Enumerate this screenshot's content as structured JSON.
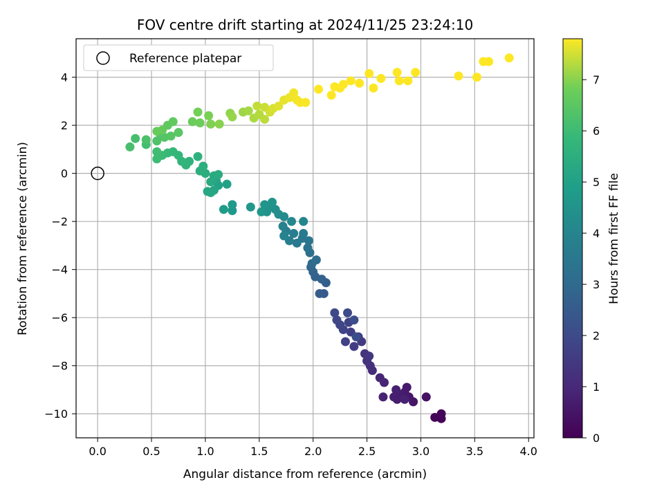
{
  "chart_data": {
    "type": "scatter",
    "title": "FOV centre drift starting at 2024/11/25 23:24:10",
    "xlabel": "Angular distance from reference (arcmin)",
    "ylabel": "Rotation from reference (arcmin)",
    "xlim": [
      -0.2,
      4.05
    ],
    "ylim": [
      -11.0,
      5.6
    ],
    "xticks": [
      "0.0",
      "0.5",
      "1.0",
      "1.5",
      "2.0",
      "2.5",
      "3.0",
      "3.5",
      "4.0"
    ],
    "xtick_values": [
      0,
      0.5,
      1,
      1.5,
      2,
      2.5,
      3,
      3.5,
      4
    ],
    "yticks": [
      "−10",
      "−8",
      "−6",
      "−4",
      "−2",
      "0",
      "2",
      "4"
    ],
    "ytick_values": [
      -10,
      -8,
      -6,
      -4,
      -2,
      0,
      2,
      4
    ],
    "grid": true,
    "legend": {
      "placement": "top-left",
      "entries": [
        "Reference platepar"
      ]
    },
    "reference_point": {
      "x": 0,
      "y": 0
    },
    "colorbar": {
      "label": "Hours from first FF file",
      "range": [
        0,
        7.8
      ],
      "ticks": [
        "0",
        "1",
        "2",
        "3",
        "4",
        "5",
        "6",
        "7"
      ],
      "tick_values": [
        0,
        1,
        2,
        3,
        4,
        5,
        6,
        7
      ],
      "colormap": "viridis"
    },
    "points": [
      [
        3.19,
        -10.2,
        0.05
      ],
      [
        3.13,
        -10.15,
        0.1
      ],
      [
        3.19,
        -10.0,
        0.15
      ],
      [
        3.05,
        -9.3,
        0.4
      ],
      [
        2.93,
        -9.5,
        0.5
      ],
      [
        2.89,
        -9.3,
        0.55
      ],
      [
        2.87,
        -8.9,
        0.6
      ],
      [
        2.85,
        -9.1,
        0.62
      ],
      [
        2.78,
        -9.4,
        0.7
      ],
      [
        2.8,
        -9.2,
        0.72
      ],
      [
        2.75,
        -9.3,
        0.75
      ],
      [
        2.77,
        -9.0,
        0.78
      ],
      [
        2.85,
        -9.4,
        0.8
      ],
      [
        2.65,
        -9.3,
        0.85
      ],
      [
        2.66,
        -8.7,
        0.9
      ],
      [
        2.62,
        -8.5,
        0.95
      ],
      [
        2.55,
        -8.2,
        1.1
      ],
      [
        2.53,
        -8.0,
        1.2
      ],
      [
        2.5,
        -7.8,
        1.3
      ],
      [
        2.48,
        -7.5,
        1.35
      ],
      [
        2.52,
        -7.6,
        1.4
      ],
      [
        2.45,
        -7.0,
        1.5
      ],
      [
        2.42,
        -6.8,
        1.55
      ],
      [
        2.38,
        -7.2,
        1.6
      ],
      [
        2.35,
        -6.6,
        1.65
      ],
      [
        2.3,
        -7.0,
        1.7
      ],
      [
        2.33,
        -6.2,
        1.75
      ],
      [
        2.28,
        -6.5,
        1.8
      ],
      [
        2.25,
        -6.3,
        1.85
      ],
      [
        2.22,
        -6.1,
        1.9
      ],
      [
        2.2,
        -5.8,
        1.95
      ],
      [
        2.32,
        -5.8,
        2.0
      ],
      [
        2.38,
        -6.1,
        2.05
      ],
      [
        2.4,
        -6.8,
        2.1
      ],
      [
        2.1,
        -5.0,
        2.5
      ],
      [
        2.06,
        -5.0,
        2.55
      ],
      [
        2.12,
        -4.55,
        2.6
      ],
      [
        2.08,
        -4.4,
        2.7
      ],
      [
        2.02,
        -4.3,
        2.75
      ],
      [
        2.0,
        -4.1,
        2.8
      ],
      [
        1.98,
        -3.9,
        2.9
      ],
      [
        1.99,
        -3.75,
        3.0
      ],
      [
        2.03,
        -3.6,
        3.1
      ],
      [
        1.97,
        -3.3,
        3.2
      ],
      [
        1.95,
        -3.1,
        3.3
      ],
      [
        1.96,
        -2.8,
        3.4
      ],
      [
        1.9,
        -2.7,
        3.5
      ],
      [
        1.85,
        -2.9,
        3.55
      ],
      [
        1.91,
        -2.5,
        3.6
      ],
      [
        1.82,
        -2.5,
        3.7
      ],
      [
        1.78,
        -2.8,
        3.75
      ],
      [
        1.75,
        -2.4,
        3.8
      ],
      [
        1.72,
        -2.2,
        3.85
      ],
      [
        1.73,
        -2.6,
        3.9
      ],
      [
        1.91,
        -2.0,
        4.0
      ],
      [
        1.8,
        -2.0,
        4.1
      ],
      [
        1.73,
        -1.8,
        4.2
      ],
      [
        1.68,
        -1.7,
        4.3
      ],
      [
        1.65,
        -1.5,
        4.35
      ],
      [
        1.6,
        -1.4,
        4.4
      ],
      [
        1.57,
        -1.6,
        4.45
      ],
      [
        1.62,
        -1.2,
        4.5
      ],
      [
        1.55,
        -1.3,
        4.55
      ],
      [
        1.52,
        -1.6,
        4.6
      ],
      [
        1.42,
        -1.4,
        4.65
      ],
      [
        1.25,
        -1.55,
        4.7
      ],
      [
        1.25,
        -1.3,
        4.75
      ],
      [
        1.17,
        -1.5,
        4.8
      ],
      [
        1.2,
        -0.45,
        5.0
      ],
      [
        1.12,
        -0.5,
        5.05
      ],
      [
        1.1,
        -0.3,
        5.1
      ],
      [
        1.08,
        -0.7,
        5.15
      ],
      [
        1.05,
        -0.8,
        5.2
      ],
      [
        1.02,
        -0.75,
        5.25
      ],
      [
        1.05,
        -0.35,
        5.3
      ],
      [
        1.08,
        -0.1,
        5.35
      ],
      [
        1.12,
        -0.05,
        5.4
      ],
      [
        1.0,
        0.0,
        5.45
      ],
      [
        0.95,
        0.1,
        5.5
      ],
      [
        0.98,
        0.3,
        5.55
      ],
      [
        0.93,
        0.7,
        5.6
      ],
      [
        0.85,
        0.5,
        5.65
      ],
      [
        0.82,
        0.35,
        5.7
      ],
      [
        0.78,
        0.5,
        5.75
      ],
      [
        0.75,
        0.75,
        5.8
      ],
      [
        0.7,
        0.9,
        5.85
      ],
      [
        0.65,
        0.85,
        5.9
      ],
      [
        0.6,
        0.75,
        5.95
      ],
      [
        0.55,
        0.6,
        6.0
      ],
      [
        0.55,
        0.9,
        6.05
      ],
      [
        0.45,
        1.2,
        6.1
      ],
      [
        0.35,
        1.45,
        6.15
      ],
      [
        0.3,
        1.1,
        6.2
      ],
      [
        0.45,
        1.4,
        6.25
      ],
      [
        0.55,
        1.35,
        6.3
      ],
      [
        0.58,
        1.65,
        6.35
      ],
      [
        0.62,
        1.5,
        6.4
      ],
      [
        0.68,
        1.55,
        6.45
      ],
      [
        0.75,
        1.7,
        6.5
      ],
      [
        0.65,
        2.0,
        6.55
      ],
      [
        0.7,
        2.15,
        6.6
      ],
      [
        0.6,
        1.8,
        6.65
      ],
      [
        0.55,
        1.75,
        6.7
      ],
      [
        0.88,
        2.15,
        6.75
      ],
      [
        0.95,
        2.1,
        6.8
      ],
      [
        0.93,
        2.55,
        6.85
      ],
      [
        1.03,
        2.4,
        6.9
      ],
      [
        1.05,
        2.05,
        6.95
      ],
      [
        1.13,
        2.05,
        7.0
      ],
      [
        1.23,
        2.5,
        7.05
      ],
      [
        1.25,
        2.35,
        7.1
      ],
      [
        1.35,
        2.55,
        7.15
      ],
      [
        1.4,
        2.6,
        7.2
      ],
      [
        1.45,
        2.3,
        7.25
      ],
      [
        1.5,
        2.45,
        7.3
      ],
      [
        1.55,
        2.25,
        7.35
      ],
      [
        1.48,
        2.8,
        7.4
      ],
      [
        1.55,
        2.75,
        7.45
      ],
      [
        1.6,
        2.55,
        7.5
      ],
      [
        1.63,
        2.7,
        7.55
      ],
      [
        1.68,
        2.8,
        7.6
      ],
      [
        1.73,
        3.05,
        7.65
      ],
      [
        1.78,
        3.15,
        7.7
      ],
      [
        1.82,
        3.35,
        7.72
      ],
      [
        1.85,
        3.05,
        7.74
      ],
      [
        1.88,
        2.95,
        7.76
      ],
      [
        1.93,
        2.95,
        7.78
      ],
      [
        2.05,
        3.5,
        7.8
      ],
      [
        2.17,
        3.25,
        7.8
      ],
      [
        2.2,
        3.6,
        7.8
      ],
      [
        2.25,
        3.55,
        7.8
      ],
      [
        2.28,
        3.7,
        7.8
      ],
      [
        2.35,
        3.85,
        7.8
      ],
      [
        2.43,
        3.75,
        7.8
      ],
      [
        2.52,
        4.15,
        7.8
      ],
      [
        2.56,
        3.55,
        7.8
      ],
      [
        2.63,
        3.95,
        7.8
      ],
      [
        2.78,
        4.2,
        7.8
      ],
      [
        2.8,
        3.85,
        7.8
      ],
      [
        2.88,
        3.85,
        7.8
      ],
      [
        2.95,
        4.2,
        7.8
      ],
      [
        3.35,
        4.05,
        7.8
      ],
      [
        3.52,
        4.0,
        7.8
      ],
      [
        3.58,
        4.65,
        7.8
      ],
      [
        3.63,
        4.65,
        7.8
      ],
      [
        3.82,
        4.8,
        7.8
      ]
    ]
  }
}
